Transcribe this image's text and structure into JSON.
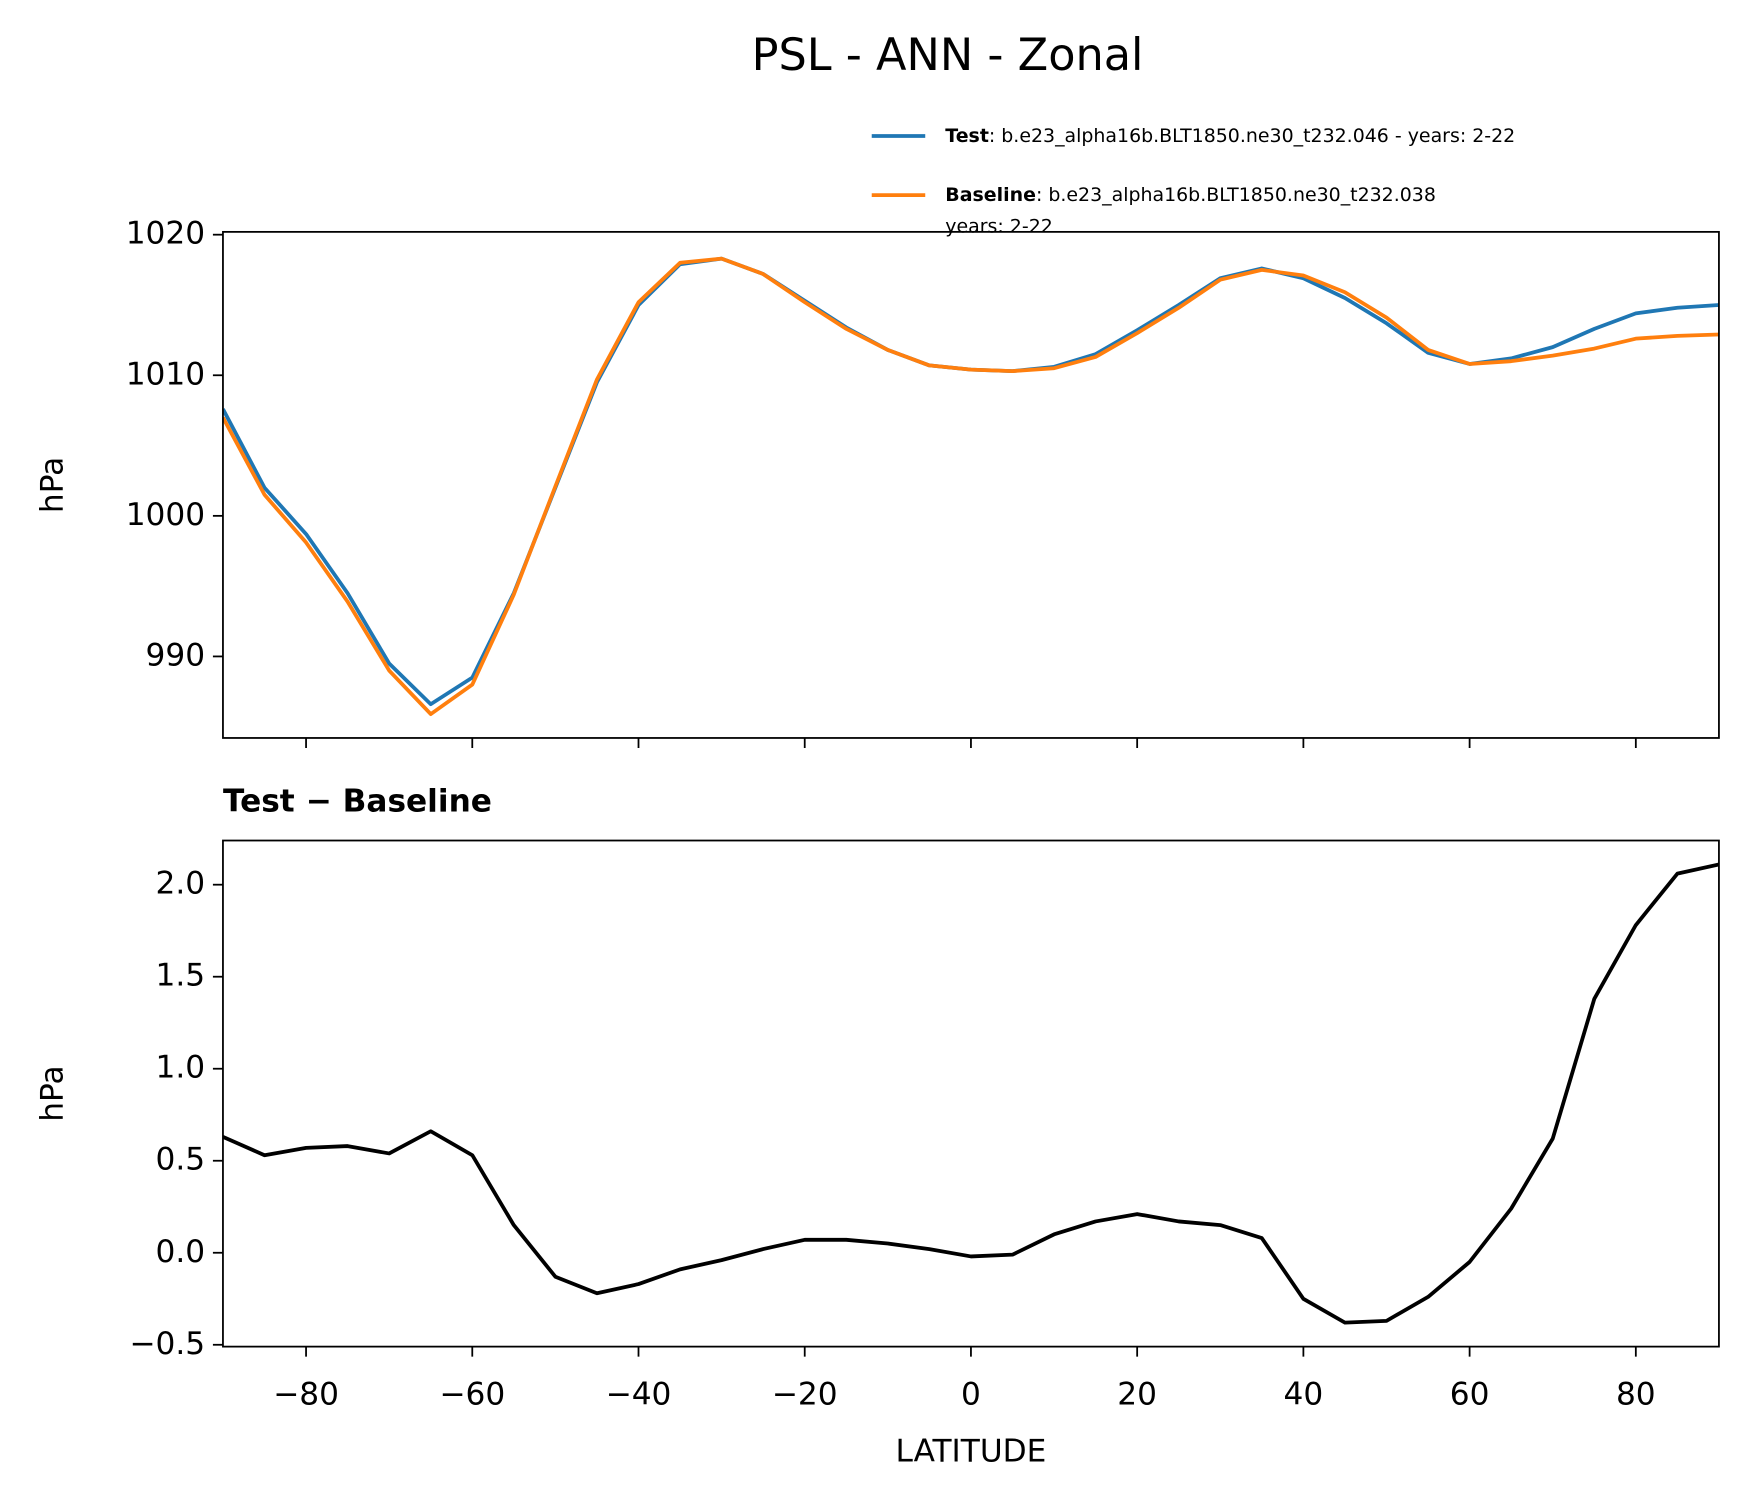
{
  "title": "PSL - ANN - Zonal",
  "chart_data": [
    {
      "type": "line",
      "xlim": [
        -90,
        90
      ],
      "xticks": [
        -80,
        -60,
        -40,
        -20,
        0,
        20,
        40,
        60,
        80
      ],
      "ylabel": "hPa",
      "ylim": [
        984.2,
        1020.2
      ],
      "yticks": [
        990,
        1000,
        1010,
        1020
      ],
      "legend": "upper right",
      "x": [
        -90,
        -85,
        -80,
        -75,
        -70,
        -65,
        -60,
        -55,
        -50,
        -45,
        -40,
        -35,
        -30,
        -25,
        -20,
        -15,
        -10,
        -5,
        0,
        5,
        10,
        15,
        20,
        25,
        30,
        35,
        40,
        45,
        50,
        55,
        60,
        65,
        70,
        75,
        80,
        85,
        90
      ],
      "series": [
        {
          "name": "Test",
          "description": [
            ": b.e23_alpha16b.BLT1850.ne30_t232.046 - years: 2-22"
          ],
          "color": "#1f77b4",
          "values": [
            1007.6,
            1002.0,
            998.7,
            994.5,
            989.5,
            986.6,
            988.5,
            994.5,
            1002.0,
            1009.5,
            1015.0,
            1017.9,
            1018.3,
            1017.2,
            1015.3,
            1013.4,
            1011.8,
            1010.7,
            1010.4,
            1010.3,
            1010.6,
            1011.5,
            1013.2,
            1015.0,
            1016.9,
            1017.6,
            1016.9,
            1015.5,
            1013.7,
            1011.6,
            1010.8,
            1011.2,
            1012.0,
            1013.3,
            1014.4,
            1014.8,
            1015.0
          ]
        },
        {
          "name": "Baseline",
          "description": [
            ": b.e23_alpha16b.BLT1850.ne30_t232.038",
            "years: 2-22"
          ],
          "color": "#ff7f0e",
          "values": [
            1007.0,
            1001.5,
            998.1,
            993.9,
            989.0,
            985.9,
            988.0,
            994.4,
            1002.1,
            1009.7,
            1015.2,
            1018.0,
            1018.3,
            1017.2,
            1015.2,
            1013.3,
            1011.8,
            1010.7,
            1010.4,
            1010.3,
            1010.5,
            1011.3,
            1013.0,
            1014.8,
            1016.8,
            1017.5,
            1017.1,
            1015.9,
            1014.1,
            1011.8,
            1010.8,
            1011.0,
            1011.4,
            1011.9,
            1012.6,
            1012.8,
            1012.9
          ]
        }
      ]
    },
    {
      "type": "line",
      "title": "Test − Baseline",
      "xlabel": "LATITUDE",
      "xlim": [
        -90,
        90
      ],
      "xticks": [
        {
          "value": -80,
          "label": "−80"
        },
        {
          "value": -60,
          "label": "−60"
        },
        {
          "value": -40,
          "label": "−40"
        },
        {
          "value": -20,
          "label": "−20"
        },
        0,
        20,
        40,
        60,
        80
      ],
      "ylabel": "hPa",
      "ylim": [
        -0.51,
        2.24
      ],
      "yticks": [
        {
          "value": -0.5,
          "label": "−0.5"
        },
        {
          "value": 0,
          "label": "0.0"
        },
        0.5,
        {
          "value": 1,
          "label": "1.0"
        },
        1.5,
        {
          "value": 2,
          "label": "2.0"
        }
      ],
      "x": [
        -90,
        -85,
        -80,
        -75,
        -70,
        -65,
        -60,
        -55,
        -50,
        -45,
        -40,
        -35,
        -30,
        -25,
        -20,
        -15,
        -10,
        -5,
        0,
        5,
        10,
        15,
        20,
        25,
        30,
        35,
        40,
        45,
        50,
        55,
        60,
        65,
        70,
        75,
        80,
        85,
        90
      ],
      "series": [
        {
          "color": "#000000",
          "values": [
            0.63,
            0.53,
            0.57,
            0.58,
            0.54,
            0.66,
            0.53,
            0.15,
            -0.13,
            -0.22,
            -0.17,
            -0.09,
            -0.04,
            0.02,
            0.07,
            0.07,
            0.05,
            0.02,
            -0.02,
            -0.01,
            0.1,
            0.17,
            0.21,
            0.17,
            0.15,
            0.08,
            -0.25,
            -0.38,
            -0.37,
            -0.24,
            -0.05,
            0.24,
            0.62,
            1.38,
            1.78,
            2.06,
            2.11
          ]
        }
      ]
    }
  ]
}
